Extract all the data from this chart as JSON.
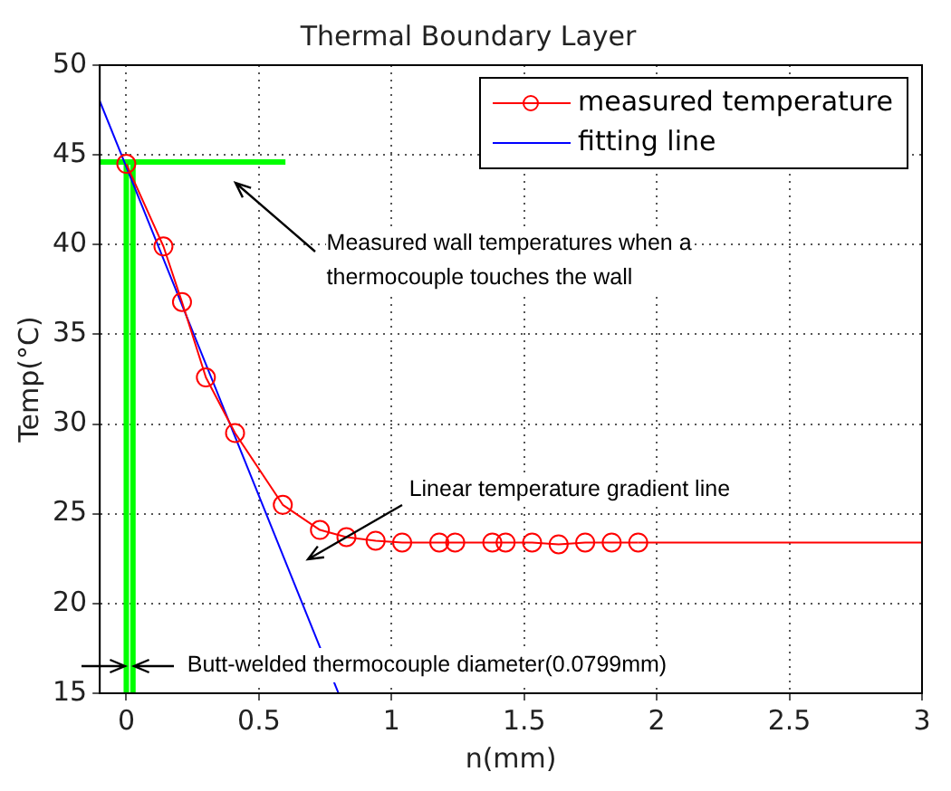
{
  "chart_data": {
    "type": "line",
    "title": "Thermal Boundary Layer",
    "xlabel": "n(mm)",
    "ylabel": "Temp(°C)",
    "xlim": [
      -0.1,
      3
    ],
    "xticks": [
      0,
      0.5,
      1,
      1.5,
      2,
      2.5,
      3
    ],
    "ylim": [
      15,
      50
    ],
    "yticks": [
      15,
      20,
      25,
      30,
      35,
      40,
      45,
      50
    ],
    "grid": true,
    "legend": "top right",
    "line_style": "solid",
    "series": [
      {
        "name": "measured temperature",
        "color": "#ff0000",
        "marker": "circle",
        "x": [
          0,
          0.14,
          0.21,
          0.3,
          0.41,
          0.59,
          0.73,
          0.83,
          0.94,
          1.04,
          1.18,
          1.24,
          1.38,
          1.43,
          1.53,
          1.63,
          1.73,
          1.83,
          1.93
        ],
        "values": [
          44.5,
          39.9,
          36.8,
          32.6,
          29.5,
          25.5,
          24.1,
          23.7,
          23.5,
          23.4,
          23.4,
          23.4,
          23.4,
          23.4,
          23.4,
          23.3,
          23.4,
          23.4,
          23.4
        ]
      },
      {
        "type": "line",
        "marker": "none",
        "color": "#ff0000",
        "x": [
          1.93,
          3
        ],
        "values": [
          23.4,
          23.4
        ]
      },
      {
        "name": "fitting line",
        "type": "line",
        "marker": "none",
        "color": "#0000ff",
        "x": [
          -0.1,
          0.8
        ],
        "values": [
          48,
          15
        ]
      },
      {
        "type": "line",
        "marker": "none",
        "color": "#00ff00",
        "x": [
          0,
          0
        ],
        "values": [
          15,
          44.6
        ]
      },
      {
        "type": "line",
        "marker": "none",
        "color": "#00ff00",
        "x": [
          0.025,
          0.025
        ],
        "values": [
          15,
          44.6
        ]
      },
      {
        "type": "line",
        "marker": "none",
        "color": "#00ff00",
        "x": [
          -0.1,
          0.6
        ],
        "values": [
          44.6,
          44.6
        ]
      }
    ],
    "annotations": [
      "Measured wall temperatures when a thermocouple touches the wall",
      "Linear temperature gradient line",
      "Butt-welded thermocouple diameter(0.0799mm)"
    ]
  }
}
